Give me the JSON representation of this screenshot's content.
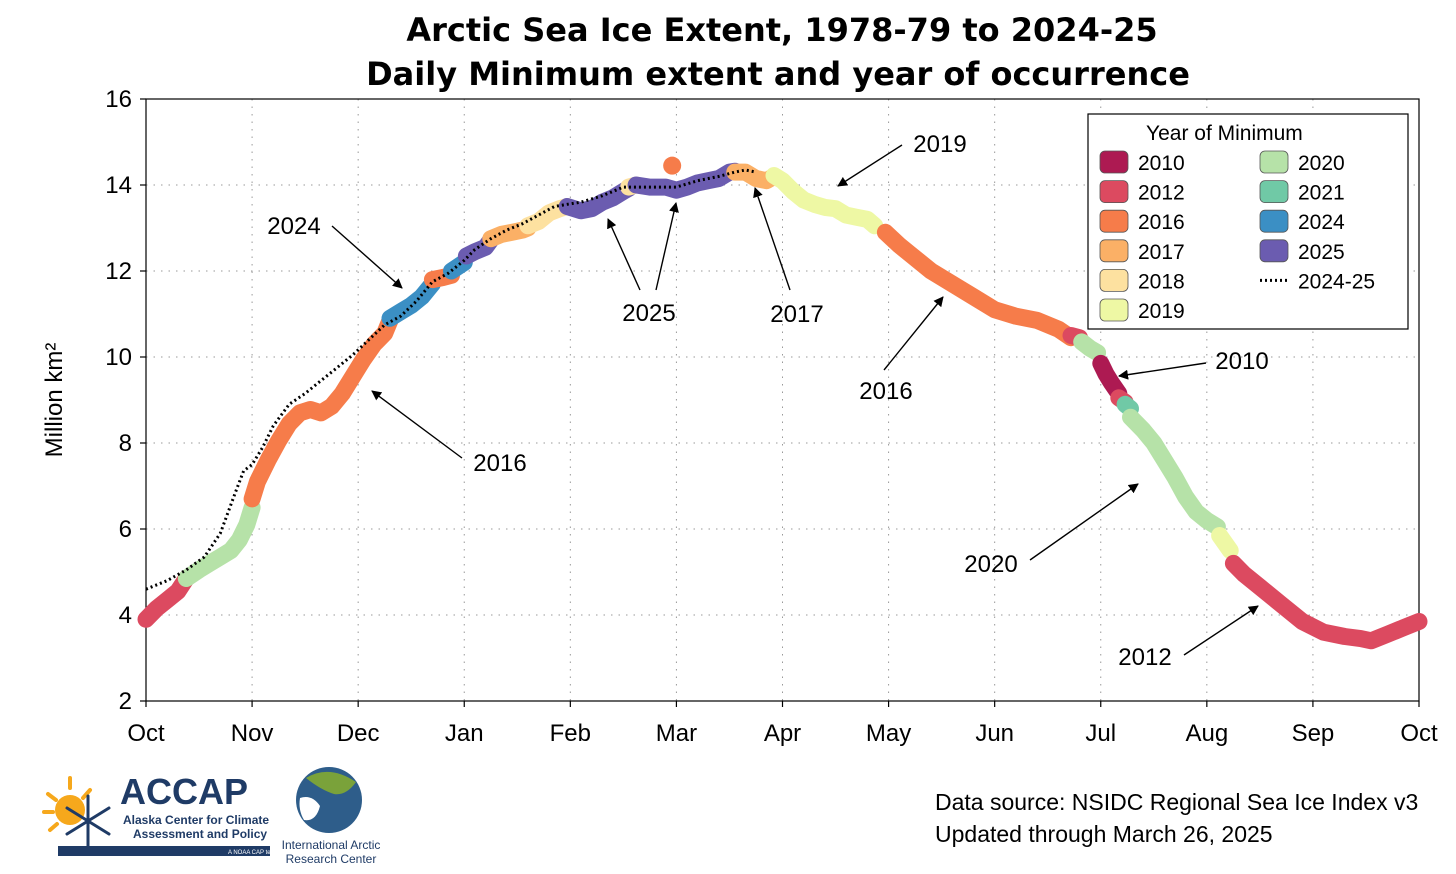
{
  "chart_data": {
    "type": "line",
    "title": "Arctic Sea Ice Extent, 1978-79 to 2024-25",
    "subtitle": "Daily Minimum extent and year of occurrence",
    "ylabel": "Million km²",
    "ylim": [
      2,
      16
    ],
    "yticks": [
      "2",
      "4",
      "6",
      "8",
      "10",
      "12",
      "14",
      "16"
    ],
    "xlim_months": [
      0,
      12
    ],
    "x_month_labels": [
      "Oct",
      "Nov",
      "Dec",
      "Jan",
      "Feb",
      "Mar",
      "Apr",
      "May",
      "Jun",
      "Jul",
      "Aug",
      "Sep",
      "Oct"
    ],
    "grid": true,
    "legend": {
      "title": "Year of Minimum",
      "placement": "top-right",
      "entries": [
        {
          "label": "2010",
          "color": "#ad1a52",
          "kind": "swatch"
        },
        {
          "label": "2012",
          "color": "#dc4a60",
          "kind": "swatch"
        },
        {
          "label": "2016",
          "color": "#f67c4a",
          "kind": "swatch"
        },
        {
          "label": "2017",
          "color": "#fbb066",
          "kind": "swatch"
        },
        {
          "label": "2018",
          "color": "#fde1a0",
          "kind": "swatch"
        },
        {
          "label": "2019",
          "color": "#eef8a4",
          "kind": "swatch"
        },
        {
          "label": "2020",
          "color": "#b6e2a8",
          "kind": "swatch"
        },
        {
          "label": "2021",
          "color": "#70c9a6",
          "kind": "swatch"
        },
        {
          "label": "2024",
          "color": "#3b8fc4",
          "kind": "swatch"
        },
        {
          "label": "2025",
          "color": "#6b5cb0",
          "kind": "swatch"
        },
        {
          "label": "2024-25",
          "color": "#000000",
          "kind": "dotted-line"
        }
      ]
    },
    "series": [
      {
        "year": "2012",
        "color": "#dc4a60",
        "x": [
          0.0,
          0.1,
          0.2,
          0.3,
          0.38
        ],
        "y": [
          3.9,
          4.15,
          4.35,
          4.55,
          4.85
        ]
      },
      {
        "year": "2020",
        "color": "#b6e2a8",
        "x": [
          0.38,
          0.5,
          0.6,
          0.7,
          0.8,
          0.88,
          0.95,
          1.0
        ],
        "y": [
          4.85,
          5.05,
          5.2,
          5.35,
          5.5,
          5.75,
          6.1,
          6.5
        ]
      },
      {
        "year": "2016",
        "color": "#f67c4a",
        "x": [
          1.0,
          1.05,
          1.15,
          1.25,
          1.35,
          1.45,
          1.55,
          1.65,
          1.75,
          1.85,
          1.95,
          2.05,
          2.15,
          2.25,
          2.3
        ],
        "y": [
          6.7,
          7.1,
          7.6,
          8.05,
          8.45,
          8.7,
          8.78,
          8.7,
          8.85,
          9.15,
          9.55,
          9.95,
          10.3,
          10.55,
          10.85
        ]
      },
      {
        "year": "2024",
        "color": "#3b8fc4",
        "x": [
          2.3,
          2.4,
          2.5,
          2.6,
          2.7
        ],
        "y": [
          10.9,
          11.05,
          11.2,
          11.4,
          11.7
        ]
      },
      {
        "year": "2016",
        "color": "#f67c4a",
        "x": [
          2.7,
          2.8,
          2.88
        ],
        "y": [
          11.8,
          11.85,
          11.9
        ]
      },
      {
        "year": "2024",
        "color": "#3b8fc4",
        "x": [
          2.88,
          3.0
        ],
        "y": [
          12.0,
          12.2
        ]
      },
      {
        "year": "2025",
        "color": "#6b5cb0",
        "x": [
          3.02,
          3.1,
          3.2,
          3.25
        ],
        "y": [
          12.35,
          12.45,
          12.55,
          12.72
        ]
      },
      {
        "year": "2017",
        "color": "#fbb066",
        "x": [
          3.25,
          3.35,
          3.45,
          3.55,
          3.6
        ],
        "y": [
          12.75,
          12.85,
          12.9,
          12.95,
          13.0
        ]
      },
      {
        "year": "2018",
        "color": "#fde1a0",
        "x": [
          3.6,
          3.7,
          3.8,
          3.9,
          3.97
        ],
        "y": [
          13.05,
          13.15,
          13.35,
          13.45,
          13.5
        ]
      },
      {
        "year": "2025",
        "color": "#6b5cb0",
        "x": [
          3.97,
          4.1,
          4.2,
          4.3,
          4.4,
          4.5,
          4.55
        ],
        "y": [
          13.5,
          13.4,
          13.45,
          13.6,
          13.7,
          13.85,
          13.92
        ]
      },
      {
        "year": "2018",
        "color": "#fde1a0",
        "x": [
          4.55,
          4.62
        ],
        "y": [
          13.95,
          14.0
        ]
      },
      {
        "year": "2025",
        "color": "#6b5cb0",
        "x": [
          4.62,
          4.75,
          4.9,
          5.0,
          5.1,
          5.2,
          5.3,
          5.4,
          5.5,
          5.55
        ],
        "y": [
          14.0,
          13.95,
          13.95,
          13.88,
          13.95,
          14.05,
          14.1,
          14.15,
          14.3,
          14.32
        ]
      },
      {
        "year": "2017",
        "color": "#fbb066",
        "x": [
          5.55,
          5.65,
          5.75,
          5.85,
          5.92
        ],
        "y": [
          14.3,
          14.3,
          14.15,
          14.1,
          14.2
        ]
      },
      {
        "year": "2019",
        "color": "#eef8a4",
        "x": [
          5.92,
          6.0,
          6.1,
          6.2,
          6.3,
          6.4,
          6.5,
          6.6,
          6.7,
          6.8,
          6.87
        ],
        "y": [
          14.22,
          14.1,
          13.85,
          13.65,
          13.55,
          13.48,
          13.45,
          13.3,
          13.25,
          13.2,
          13.05
        ]
      },
      {
        "year": "2016",
        "color": "#f67c4a",
        "x": [
          6.97,
          7.1,
          7.2,
          7.4,
          7.6,
          7.8,
          8.0,
          8.2,
          8.4,
          8.6,
          8.72
        ],
        "y": [
          12.9,
          12.6,
          12.4,
          12.0,
          11.7,
          11.4,
          11.1,
          10.95,
          10.85,
          10.65,
          10.45
        ]
      },
      {
        "year": "2012",
        "color": "#dc4a60",
        "x": [
          8.72,
          8.8
        ],
        "y": [
          10.5,
          10.45
        ]
      },
      {
        "year": "2020",
        "color": "#b6e2a8",
        "x": [
          8.82,
          8.9,
          8.97
        ],
        "y": [
          10.35,
          10.2,
          10.1
        ]
      },
      {
        "year": "2010",
        "color": "#ad1a52",
        "x": [
          9.0,
          9.05,
          9.1,
          9.17
        ],
        "y": [
          9.85,
          9.6,
          9.4,
          9.15
        ]
      },
      {
        "year": "2012",
        "color": "#dc4a60",
        "x": [
          9.17,
          9.23
        ],
        "y": [
          9.05,
          8.95
        ]
      },
      {
        "year": "2021",
        "color": "#70c9a6",
        "x": [
          9.23,
          9.28
        ],
        "y": [
          8.9,
          8.8
        ]
      },
      {
        "year": "2020",
        "color": "#b6e2a8",
        "x": [
          9.28,
          9.4,
          9.5,
          9.6,
          9.7,
          9.8,
          9.9,
          10.0,
          10.1
        ],
        "y": [
          8.6,
          8.3,
          8.0,
          7.6,
          7.2,
          6.75,
          6.4,
          6.2,
          6.05
        ]
      },
      {
        "year": "2019",
        "color": "#eef8a4",
        "x": [
          10.12,
          10.22
        ],
        "y": [
          5.85,
          5.5
        ]
      },
      {
        "year": "2012",
        "color": "#dc4a60",
        "x": [
          10.25,
          10.35,
          10.5,
          10.7,
          10.9,
          11.1,
          11.3,
          11.45,
          11.55,
          11.7,
          11.85,
          12.0
        ],
        "y": [
          5.2,
          4.95,
          4.65,
          4.25,
          3.85,
          3.6,
          3.5,
          3.45,
          3.4,
          3.55,
          3.7,
          3.85
        ]
      }
    ],
    "dotted_2024_25": {
      "label": "2024-25",
      "x": [
        0.0,
        0.2,
        0.38,
        0.55,
        0.7,
        0.85,
        0.92,
        1.0,
        1.1,
        1.2,
        1.35,
        1.5,
        1.65,
        1.8,
        1.95,
        2.1,
        2.25,
        2.4,
        2.55,
        2.7,
        2.85,
        3.0,
        3.1,
        3.25,
        3.4,
        3.55,
        3.7,
        3.85,
        3.97,
        4.1,
        4.3,
        4.5,
        4.7,
        4.9,
        5.0,
        5.2,
        5.4,
        5.55,
        5.65,
        5.75
      ],
      "y": [
        4.6,
        4.8,
        5.05,
        5.35,
        5.9,
        6.9,
        7.35,
        7.5,
        7.9,
        8.4,
        8.9,
        9.15,
        9.45,
        9.75,
        10.05,
        10.4,
        10.75,
        10.95,
        11.3,
        11.75,
        11.95,
        12.25,
        12.5,
        12.75,
        12.95,
        13.1,
        13.3,
        13.5,
        13.55,
        13.6,
        13.75,
        13.95,
        13.95,
        13.95,
        13.95,
        14.1,
        14.2,
        14.3,
        14.35,
        14.3
      ]
    },
    "outlier_point": {
      "year": "2016",
      "color": "#f67c4a",
      "x": 4.96,
      "y": 14.45
    },
    "annotations": [
      {
        "text": "2024"
      },
      {
        "text": "2016"
      },
      {
        "text": "2025"
      },
      {
        "text": "2017"
      },
      {
        "text": "2019"
      },
      {
        "text": "2016"
      },
      {
        "text": "2010"
      },
      {
        "text": "2020"
      },
      {
        "text": "2012"
      }
    ]
  },
  "footer": {
    "source_line": "Data source: NSIDC Regional Sea Ice Index v3",
    "updated_line": "Updated through March 26, 2025"
  },
  "logos": {
    "accap_name": "ACCAP",
    "accap_line1": "Alaska Center for Climate",
    "accap_line2": "Assessment and Policy",
    "accap_tag": "A NOAA CAP team",
    "iarc_line1": "International Arctic",
    "iarc_line2": "Research Center"
  }
}
